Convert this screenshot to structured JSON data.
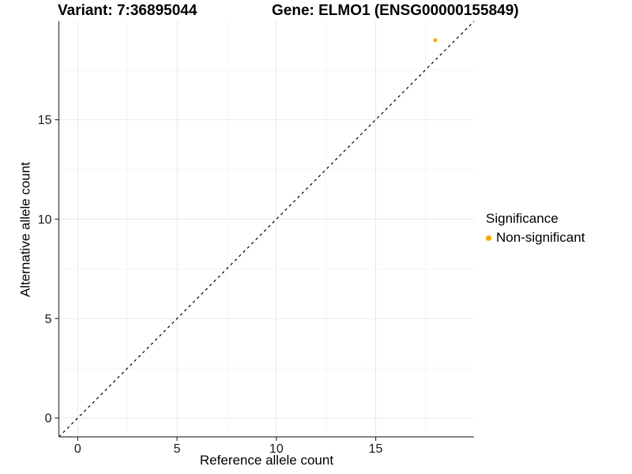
{
  "chart_data": {
    "type": "scatter",
    "title_left": "Variant: 7:36895044",
    "title_right": "Gene: ELMO1 (ENSG00000155849)",
    "xlabel": "Reference allele count",
    "ylabel": "Alternative allele count",
    "xlim": [
      -0.95,
      19.95
    ],
    "ylim": [
      -0.95,
      19.95
    ],
    "x_major_ticks": [
      0,
      5,
      10,
      15
    ],
    "y_major_ticks": [
      0,
      5,
      10,
      15
    ],
    "x_minor_ticks": [
      2.5,
      7.5,
      12.5,
      17.5
    ],
    "y_minor_ticks": [
      2.5,
      7.5,
      12.5,
      17.5
    ],
    "grid": true,
    "reference_line": {
      "kind": "identity",
      "style": "dashed",
      "color": "#000000"
    },
    "series": [
      {
        "name": "Non-significant",
        "color": "#FFA500",
        "points": [
          {
            "x": 18,
            "y": 19
          }
        ]
      }
    ],
    "legend": {
      "title": "Significance",
      "position": "right",
      "entries": [
        {
          "label": "Non-significant",
          "color": "#FFA500"
        }
      ]
    },
    "colors": {
      "background": "#ffffff",
      "grid_major": "#eaeaea",
      "grid_minor": "#f4f4f4",
      "axis_line": "#5a5a5a",
      "tick_mark": "#333333",
      "tick_label": "#1a1a1a"
    }
  }
}
